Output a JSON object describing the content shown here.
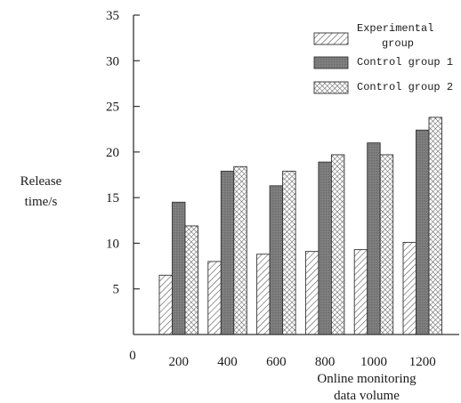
{
  "chart_data": {
    "type": "bar",
    "title": "",
    "ylabel": [
      "Release",
      "time/s"
    ],
    "xlabel": [
      "Online monitoring",
      "data volume"
    ],
    "categories": [
      "200",
      "400",
      "600",
      "800",
      "1000",
      "1200"
    ],
    "x_origin_label": "0",
    "ylim": [
      0,
      35
    ],
    "yticks": [
      "5",
      "10",
      "15",
      "20",
      "25",
      "30",
      "35"
    ],
    "grid": false,
    "legend_position": "top-right",
    "series": [
      {
        "name": [
          "Experimental",
          "group"
        ],
        "pattern": "diagonal-hatch",
        "color": "#ffffff",
        "values": [
          6.5,
          8.0,
          8.8,
          9.1,
          9.3,
          10.1
        ]
      },
      {
        "name": [
          "Control group 1"
        ],
        "pattern": "solid",
        "color": "#7a7a7a",
        "values": [
          14.5,
          17.9,
          16.3,
          18.9,
          21.0,
          22.4
        ]
      },
      {
        "name": [
          "Control group 2"
        ],
        "pattern": "crosshatch",
        "color": "#ffffff",
        "values": [
          11.9,
          18.4,
          17.9,
          19.7,
          19.7,
          23.8
        ]
      }
    ]
  }
}
